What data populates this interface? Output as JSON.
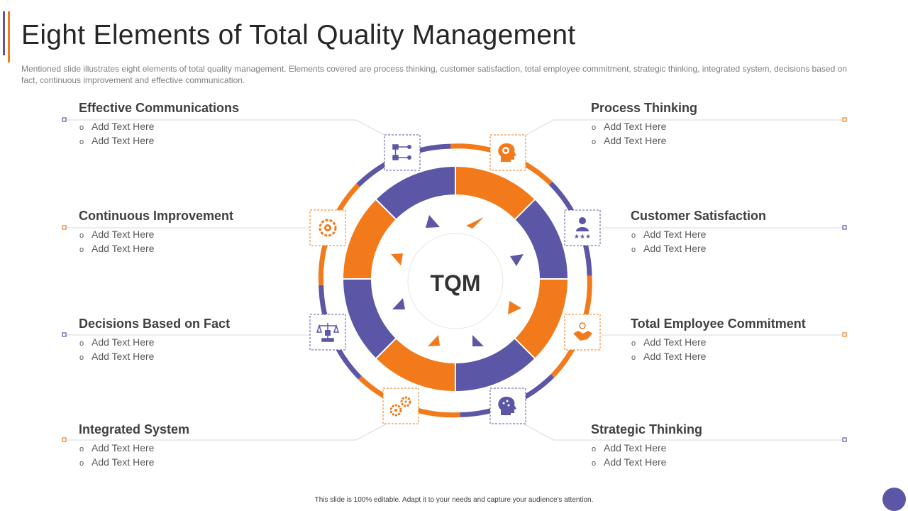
{
  "title": "Eight Elements of Total Quality Management",
  "subtitle": "Mentioned slide illustrates eight elements of total quality management. Elements covered  are process thinking, customer satisfaction, total employee commitment, strategic thinking, integrated system, decisions based on fact, continuous improvement  and effective  communication.",
  "center_label": "TQM",
  "footer": "This slide is 100% editable.  Adapt it to your needs and capture your audience's attention.",
  "colors": {
    "purple": "#5b57a6",
    "orange": "#f27a1a",
    "text": "#404040",
    "line": "#d9d9d9"
  },
  "elements": [
    {
      "title": "Effective Communications",
      "bullets": [
        "Add Text Here",
        "Add Text Here"
      ],
      "icon": "flowchart-icon"
    },
    {
      "title": "Process Thinking",
      "bullets": [
        "Add Text Here",
        "Add Text Here"
      ],
      "icon": "head-gear-icon"
    },
    {
      "title": "Continuous Improvement",
      "bullets": [
        "Add Text Here",
        "Add Text Here"
      ],
      "icon": "gear-cycle-icon"
    },
    {
      "title": "Customer Satisfaction",
      "bullets": [
        "Add Text Here",
        "Add Text Here"
      ],
      "icon": "person-stars-icon"
    },
    {
      "title": "Decisions Based on Fact",
      "bullets": [
        "Add Text Here",
        "Add Text Here"
      ],
      "icon": "scale-icon"
    },
    {
      "title": "Total Employee Commitment",
      "bullets": [
        "Add Text Here",
        "Add Text Here"
      ],
      "icon": "handshake-icon"
    },
    {
      "title": "Integrated System",
      "bullets": [
        "Add Text Here",
        "Add Text Here"
      ],
      "icon": "gears-icon"
    },
    {
      "title": "Strategic Thinking",
      "bullets": [
        "Add Text Here",
        "Add Text Here"
      ],
      "icon": "head-brain-icon"
    }
  ]
}
